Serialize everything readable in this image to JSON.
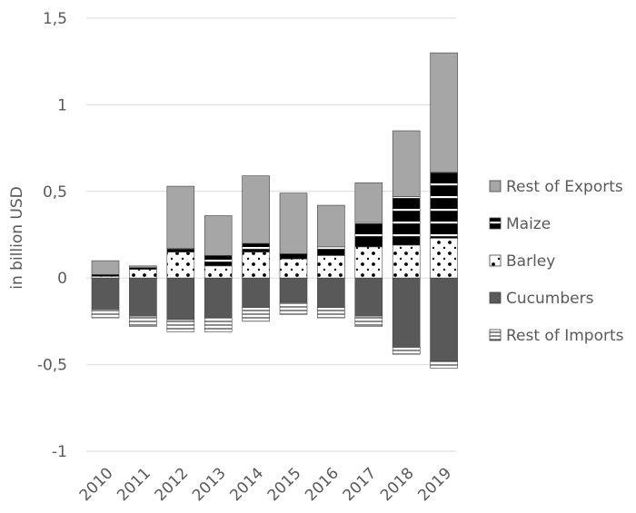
{
  "chart_data": {
    "type": "bar",
    "stacked": true,
    "title": "",
    "xlabel": "",
    "ylabel": "in billion USD",
    "ylim": [
      -1,
      1.5
    ],
    "yticks": [
      -1,
      -0.5,
      0,
      0.5,
      1,
      1.5
    ],
    "ytick_labels": [
      "-1",
      "-0,5",
      "0",
      "0,5",
      "1",
      "1,5"
    ],
    "categories": [
      "2010",
      "2011",
      "2012",
      "2013",
      "2014",
      "2015",
      "2016",
      "2017",
      "2018",
      "2019"
    ],
    "grid": true,
    "legend_position": "right",
    "series": [
      {
        "name": "Rest of Exports",
        "pattern": "solid-light-gray",
        "color": "#a6a6a6",
        "values": [
          0.08,
          0.01,
          0.36,
          0.23,
          0.39,
          0.35,
          0.24,
          0.23,
          0.38,
          0.69
        ]
      },
      {
        "name": "Maize",
        "pattern": "black-with-white-stripes",
        "color": "#000000",
        "values": [
          0.01,
          0.01,
          0.02,
          0.06,
          0.05,
          0.03,
          0.05,
          0.14,
          0.28,
          0.38
        ]
      },
      {
        "name": "Barley",
        "pattern": "white-with-black-dots",
        "color": "#ffffff",
        "values": [
          0.01,
          0.05,
          0.15,
          0.07,
          0.15,
          0.11,
          0.13,
          0.18,
          0.19,
          0.23
        ]
      },
      {
        "name": "Cucumbers",
        "pattern": "solid-dark-gray",
        "color": "#595959",
        "values": [
          -0.18,
          -0.22,
          -0.24,
          -0.23,
          -0.17,
          -0.14,
          -0.17,
          -0.22,
          -0.4,
          -0.48
        ]
      },
      {
        "name": "Rest of Imports",
        "pattern": "white-with-horizontal-lines",
        "color": "#ffffff",
        "values": [
          -0.05,
          -0.06,
          -0.07,
          -0.08,
          -0.08,
          -0.07,
          -0.06,
          -0.06,
          -0.04,
          -0.04
        ]
      }
    ]
  },
  "colors": {
    "gridline": "#d9d9d9",
    "axis_text": "#595959",
    "bar_stroke": "#404040"
  }
}
